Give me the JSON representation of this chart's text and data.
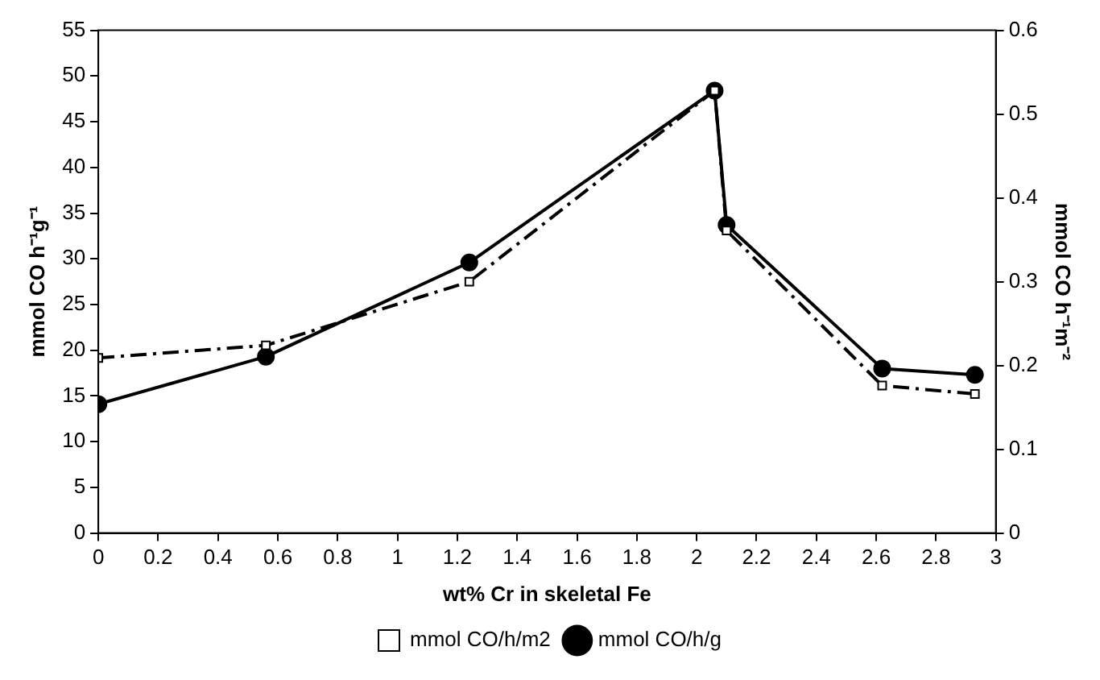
{
  "chart_data": {
    "type": "line",
    "xlabel": "wt% Cr in skeletal Fe",
    "ylabel": "mmol CO h⁻¹g⁻¹",
    "y2label": "mmol CO h⁻¹m⁻²",
    "x": [
      0,
      0.56,
      1.24,
      2.06,
      2.1,
      2.62,
      2.93
    ],
    "xlim": [
      0,
      3
    ],
    "xticks": [
      0,
      0.2,
      0.4,
      0.6,
      0.8,
      1,
      1.2,
      1.4,
      1.6,
      1.8,
      2,
      2.2,
      2.4,
      2.6,
      2.8,
      3
    ],
    "ylim": [
      0,
      55
    ],
    "yticks": [
      0,
      5,
      10,
      15,
      20,
      25,
      30,
      35,
      40,
      45,
      50,
      55
    ],
    "y2lim": [
      0,
      0.6
    ],
    "y2ticks": [
      0,
      0.1,
      0.2,
      0.3,
      0.4,
      0.5,
      0.6
    ],
    "grid": false,
    "legend": "bottom",
    "series": [
      {
        "name": "mmol CO/h/g",
        "color": "#000000",
        "marker": "circle",
        "line_style": "solid",
        "values": [
          14.1,
          19.3,
          29.6,
          48.4,
          33.7,
          18.0,
          17.3
        ]
      },
      {
        "name": "mmol CO/h/m2",
        "color": "#000000",
        "marker": "square",
        "line_style": "dashed",
        "axis": "y2",
        "values": [
          0.209,
          0.224,
          0.3,
          0.528,
          0.361,
          0.176,
          0.166
        ]
      }
    ]
  }
}
